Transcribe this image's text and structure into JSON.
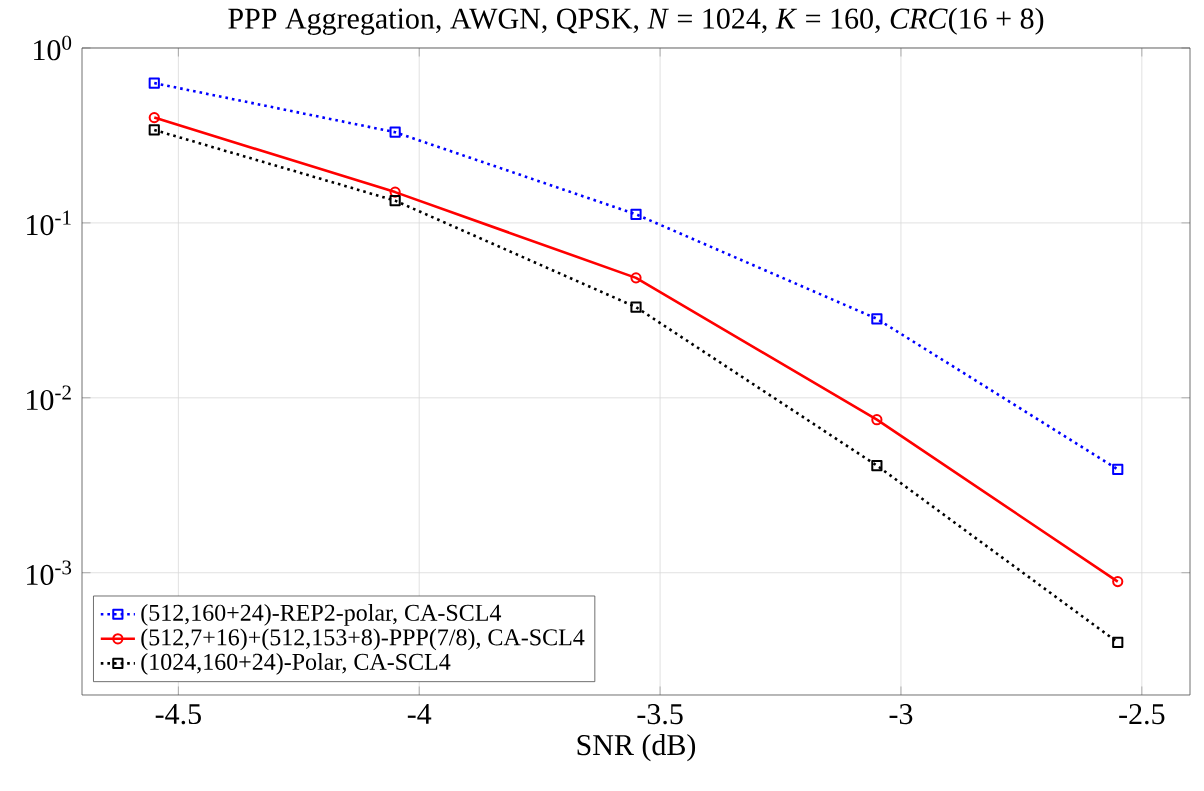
{
  "chart_data": {
    "type": "line",
    "title": "PPP Aggregation, AWGN, QPSK, *N* = 1024, *K* = 160, *CRC*(16 + 8)",
    "xlabel": "SNR (dB)",
    "x": [
      -4.55,
      -4.05,
      -3.55,
      -3.05,
      -2.55
    ],
    "series": [
      {
        "name": "(512,160+24)-REP2-polar, CA-SCL4",
        "color": "#0000ff",
        "marker": "square",
        "line_style": "dotted",
        "values": [
          0.63,
          0.33,
          0.112,
          0.0283,
          0.0039
        ]
      },
      {
        "name": "(512,7+16)+(512,153+8)-PPP(7/8), CA-SCL4",
        "color": "#ff0000",
        "marker": "circle",
        "line_style": "solid",
        "values": [
          0.4,
          0.15,
          0.0485,
          0.0075,
          0.00089
        ]
      },
      {
        "name": "(1024,160+24)-Polar, CA-SCL4",
        "color": "#000000",
        "marker": "square",
        "line_style": "dotted",
        "values": [
          0.34,
          0.134,
          0.033,
          0.0041,
          0.0004
        ]
      }
    ],
    "log": "y",
    "grid": true,
    "legend": "bottom left",
    "xlim": [
      -4.7,
      -2.4
    ],
    "ylim": [
      0.0002,
      1
    ],
    "xticks": [
      -4.5,
      -4,
      -3.5,
      -3,
      -2.5
    ],
    "yticks": [
      {
        "value": 1,
        "label": "10$^{0}$"
      },
      {
        "value": 0.1,
        "label": "10$^{-1}$"
      },
      {
        "value": 0.01,
        "label": "10$^{-2}$"
      },
      {
        "value": 0.001,
        "label": "10$^{-3}$"
      }
    ]
  }
}
